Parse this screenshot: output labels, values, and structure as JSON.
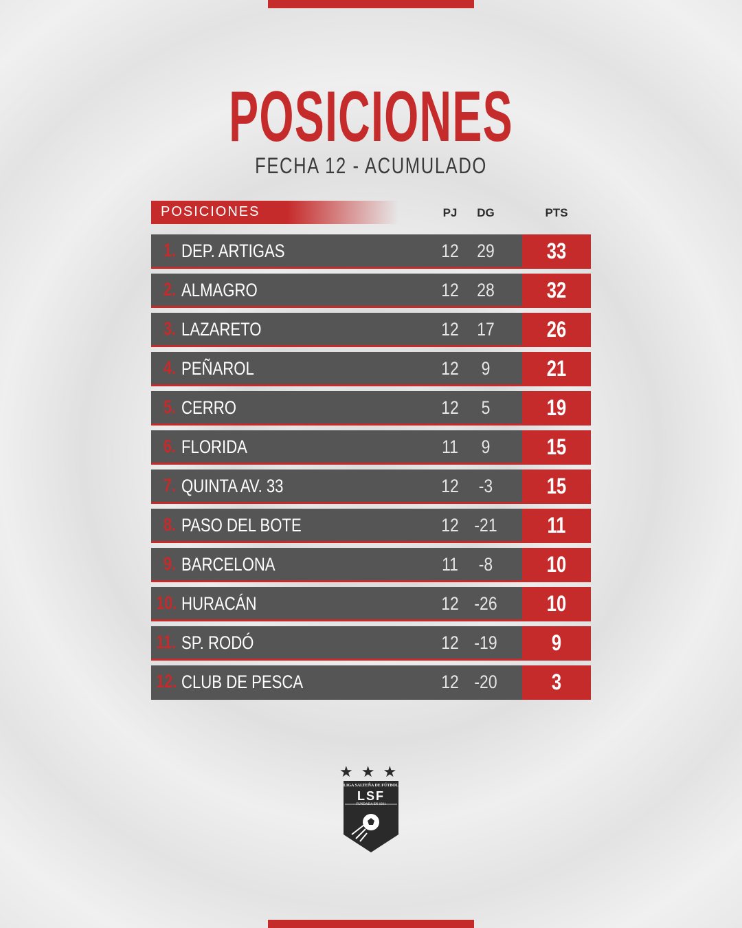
{
  "page": {
    "title": "POSICIONES",
    "subtitle": "FECHA 12 - ACUMULADO"
  },
  "table": {
    "header_label": "POSICIONES",
    "columns": {
      "pj": "PJ",
      "dg": "DG",
      "pts": "PTS"
    },
    "rows": [
      {
        "rank": "1.",
        "team": "DEP. ARTIGAS",
        "pj": "12",
        "dg": "29",
        "pts": "33"
      },
      {
        "rank": "2.",
        "team": "ALMAGRO",
        "pj": "12",
        "dg": "28",
        "pts": "32"
      },
      {
        "rank": "3.",
        "team": "LAZARETO",
        "pj": "12",
        "dg": "17",
        "pts": "26"
      },
      {
        "rank": "4.",
        "team": "PEÑAROL",
        "pj": "12",
        "dg": "9",
        "pts": "21"
      },
      {
        "rank": "5.",
        "team": "CERRO",
        "pj": "12",
        "dg": "5",
        "pts": "19"
      },
      {
        "rank": "6.",
        "team": "FLORIDA",
        "pj": "11",
        "dg": "9",
        "pts": "15"
      },
      {
        "rank": "7.",
        "team": "QUINTA AV. 33",
        "pj": "12",
        "dg": "-3",
        "pts": "15"
      },
      {
        "rank": "8.",
        "team": "PASO DEL BOTE",
        "pj": "12",
        "dg": "-21",
        "pts": "11"
      },
      {
        "rank": "9.",
        "team": "BARCELONA",
        "pj": "11",
        "dg": "-8",
        "pts": "10"
      },
      {
        "rank": "10.",
        "team": "HURACÁN",
        "pj": "12",
        "dg": "-26",
        "pts": "10"
      },
      {
        "rank": "11.",
        "team": "SP. RODÓ",
        "pj": "12",
        "dg": "-19",
        "pts": "9"
      },
      {
        "rank": "12.",
        "team": "CLUB DE PESCA",
        "pj": "12",
        "dg": "-20",
        "pts": "3"
      }
    ]
  },
  "logo": {
    "league_name": "LIGA SALTEÑA DE FÚTBOL",
    "abbr": "LSF",
    "founded": "FUNDADA EN 1931",
    "stars": "★★★"
  },
  "colors": {
    "accent": "#c62b2b",
    "row_bg": "#555555",
    "text_dark": "#3a3a3a"
  }
}
